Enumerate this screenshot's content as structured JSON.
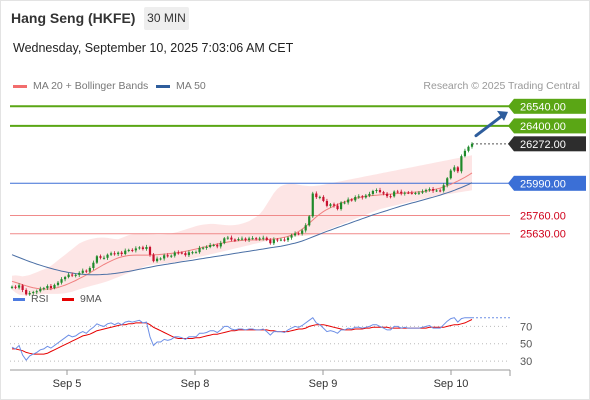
{
  "header": {
    "title": "Hang Seng (HKFE)",
    "timeframe": "30 MIN",
    "datetime": "Wednesday, September 10, 2025 7:03:06 AM CET"
  },
  "legend": {
    "items": [
      {
        "label": "MA 20 + Bollinger Bands",
        "color": "#f26d6d"
      },
      {
        "label": "MA 50",
        "color": "#2e5d9c"
      }
    ],
    "credit": "Research © 2025 Trading Central"
  },
  "rsi_legend": {
    "items": [
      {
        "label": "RSI",
        "color": "#4d7be0"
      },
      {
        "label": "9MA",
        "color": "#e60000"
      }
    ]
  },
  "colors": {
    "up": "#1e8a2a",
    "down": "#c8102e",
    "resistance": "#5aa615",
    "current": "#2d2d2d",
    "pivot": "#3b6fd6",
    "support": "#f08a8a",
    "band_fill": "#fde0e0",
    "arrow": "#2e5d9c"
  },
  "chart_data": [
    {
      "type": "candlestick",
      "x_labels": [
        "Sep 5",
        "Sep 8",
        "Sep 9",
        "Sep 10"
      ],
      "y_range": [
        25185,
        26585
      ],
      "levels": [
        {
          "value": 26540,
          "label": "26540.00",
          "kind": "resistance"
        },
        {
          "value": 26400,
          "label": "26400.00",
          "kind": "resistance"
        },
        {
          "value": 26272,
          "label": "26272.00",
          "kind": "current"
        },
        {
          "value": 25990,
          "label": "25990.00",
          "kind": "pivot"
        },
        {
          "value": 25760,
          "label": "25760.00",
          "kind": "support"
        },
        {
          "value": 25630,
          "label": "25630.00",
          "kind": "support"
        }
      ],
      "close": [
        25251,
        25245,
        25261,
        25228,
        25197,
        25206,
        25213,
        25219,
        25236,
        25241,
        25256,
        25242,
        25264,
        25280,
        25305,
        25320,
        25338,
        25331,
        25336,
        25350,
        25366,
        25359,
        25385,
        25423,
        25469,
        25458,
        25458,
        25480,
        25490,
        25484,
        25495,
        25485,
        25509,
        25514,
        25511,
        25525,
        25532,
        25521,
        25535,
        25480,
        25434,
        25452,
        25453,
        25476,
        25468,
        25473,
        25496,
        25495,
        25491,
        25477,
        25497,
        25498,
        25498,
        25528,
        25530,
        25535,
        25549,
        25549,
        25539,
        25564,
        25597,
        25602,
        25588,
        25586,
        25592,
        25595,
        25586,
        25596,
        25598,
        25592,
        25596,
        25601,
        25586,
        25562,
        25589,
        25585,
        25588,
        25584,
        25602,
        25618,
        25632,
        25630,
        25653,
        25690,
        25754,
        25917,
        25891,
        25893,
        25864,
        25829,
        25840,
        25831,
        25806,
        25853,
        25853,
        25874,
        25868,
        25892,
        25897,
        25889,
        25902,
        25914,
        25935,
        25942,
        25927,
        25916,
        25898,
        25897,
        25931,
        25930,
        25917,
        25923,
        25922,
        25920,
        25921,
        25923,
        25932,
        25943,
        25949,
        25937,
        25939,
        25937,
        25976,
        26026,
        26081,
        26104,
        26076,
        26184,
        26222,
        26251,
        26272
      ],
      "ma20": [
        25290,
        25282,
        25274,
        25266,
        25258,
        25250,
        25244,
        25239,
        25236,
        25234,
        25234,
        25236,
        25240,
        25246,
        25254,
        25263,
        25273,
        25284,
        25296,
        25309,
        25322,
        25336,
        25351,
        25366,
        25381,
        25396,
        25410,
        25423,
        25436,
        25447,
        25457,
        25464,
        25470,
        25474,
        25476,
        25477,
        25477,
        25477,
        25477,
        25478,
        25479,
        25480,
        25482,
        25484,
        25486,
        25489,
        25492,
        25495,
        25499,
        25504,
        25509,
        25515,
        25521,
        25527,
        25533,
        25539,
        25545,
        25551,
        25556,
        25561,
        25566,
        25571,
        25575,
        25578,
        25580,
        25582,
        25584,
        25585,
        25585,
        25586,
        25586,
        25587,
        25588,
        25590,
        25592,
        25595,
        25599,
        25604,
        25611,
        25620,
        25631,
        25645,
        25662,
        25682,
        25704,
        25728,
        25750,
        25770,
        25788,
        25803,
        25816,
        25828,
        25839,
        25849,
        25858,
        25867,
        25875,
        25882,
        25888,
        25893,
        25897,
        25900,
        25903,
        25905,
        25907,
        25909,
        25911,
        25913,
        25915,
        25917,
        25919,
        25921,
        25923,
        25925,
        25927,
        25929,
        25931,
        25934,
        25938,
        25943,
        25949,
        25956,
        25964,
        25973,
        25983,
        25994,
        26006,
        26019,
        26033,
        26048,
        26064
      ],
      "ma50": [
        25480,
        25470,
        25460,
        25450,
        25440,
        25431,
        25422,
        25413,
        25405,
        25397,
        25389,
        25382,
        25375,
        25369,
        25363,
        25358,
        25353,
        25349,
        25345,
        25342,
        25340,
        25338,
        25337,
        25337,
        25337,
        25338,
        25339,
        25341,
        25343,
        25346,
        25349,
        25353,
        25357,
        25361,
        25366,
        25371,
        25376,
        25381,
        25386,
        25391,
        25396,
        25401,
        25405,
        25409,
        25413,
        25417,
        25421,
        25425,
        25429,
        25433,
        25437,
        25441,
        25445,
        25449,
        25453,
        25457,
        25461,
        25465,
        25469,
        25473,
        25477,
        25481,
        25485,
        25489,
        25493,
        25497,
        25501,
        25505,
        25509,
        25513,
        25517,
        25521,
        25525,
        25529,
        25533,
        25537,
        25541,
        25546,
        25551,
        25557,
        25563,
        25570,
        25578,
        25587,
        25597,
        25607,
        25617,
        25627,
        25637,
        25647,
        25656,
        25665,
        25674,
        25683,
        25692,
        25701,
        25710,
        25719,
        25728,
        25737,
        25746,
        25755,
        25764,
        25772,
        25780,
        25788,
        25796,
        25804,
        25812,
        25820,
        25828,
        25835,
        25842,
        25849,
        25856,
        25863,
        25870,
        25877,
        25884,
        25891,
        25898,
        25906,
        25914,
        25922,
        25931,
        25940,
        25950,
        25960,
        25971,
        25982,
        25994
      ],
      "band_upper": [
        25330,
        25332,
        25330,
        25325,
        25330,
        25335,
        25345,
        25355,
        25365,
        25375,
        25385,
        25400,
        25420,
        25440,
        25460,
        25480,
        25500,
        25520,
        25540,
        25560,
        25572,
        25582,
        25590,
        25596,
        25600,
        25602,
        25602,
        25600,
        25596,
        25592,
        25590,
        25600,
        25610,
        25620,
        25625,
        25630,
        25632,
        25630,
        25628,
        25626,
        25624,
        25622,
        25622,
        25624,
        25628,
        25632,
        25638,
        25644,
        25652,
        25660,
        25668,
        25676,
        25684,
        25690,
        25695,
        25698,
        25700,
        25700,
        25698,
        25695,
        25692,
        25690,
        25690,
        25692,
        25696,
        25702,
        25710,
        25720,
        25735,
        25750,
        25770,
        25800,
        25840,
        25880,
        25920,
        25950,
        25970,
        25980,
        25985,
        25988,
        25985,
        25980,
        25975,
        25972,
        25970,
        25970,
        25972,
        25975,
        25980,
        25985,
        25990,
        25995,
        26000,
        26005,
        26010,
        26015,
        26020,
        26025,
        26030,
        26035,
        26040,
        26045,
        26050,
        26055,
        26060,
        26065,
        26070,
        26075,
        26080,
        26085,
        26090,
        26095,
        26100,
        26105,
        26110,
        26115,
        26120,
        26125,
        26130,
        26135,
        26140,
        26145,
        26150,
        26155,
        26160,
        26165,
        26170,
        26175,
        26180,
        26185,
        26190
      ],
      "band_lower": [
        25230,
        25210,
        25195,
        25190,
        25190,
        25192,
        25194,
        25196,
        25198,
        25200,
        25200,
        25200,
        25200,
        25200,
        25202,
        25205,
        25210,
        25216,
        25224,
        25232,
        25240,
        25248,
        25255,
        25262,
        25268,
        25275,
        25282,
        25290,
        25300,
        25310,
        25320,
        25330,
        25340,
        25350,
        25360,
        25370,
        25380,
        25390,
        25400,
        25405,
        25410,
        25412,
        25415,
        25418,
        25420,
        25423,
        25426,
        25430,
        25435,
        25440,
        25446,
        25452,
        25458,
        25464,
        25470,
        25476,
        25482,
        25488,
        25494,
        25500,
        25506,
        25512,
        25518,
        25524,
        25530,
        25536,
        25542,
        25548,
        25554,
        25560,
        25566,
        25572,
        25578,
        25584,
        25590,
        25594,
        25598,
        25602,
        25606,
        25608,
        25610,
        25612,
        25614,
        25616,
        25618,
        25622,
        25628,
        25636,
        25646,
        25656,
        25666,
        25676,
        25686,
        25696,
        25706,
        25716,
        25726,
        25736,
        25746,
        25756,
        25766,
        25776,
        25786,
        25796,
        25806,
        25812,
        25818,
        25824,
        25830,
        25836,
        25842,
        25848,
        25854,
        25860,
        25866,
        25872,
        25878,
        25884,
        25890,
        25896,
        25900,
        25904,
        25908,
        25912,
        25916,
        25920,
        25924,
        25928,
        25932,
        25936,
        25940
      ],
      "forecast_arrow": {
        "from": 26330,
        "to": 26500
      }
    },
    {
      "type": "line",
      "title": "RSI",
      "y_ticks": [
        70,
        50,
        30
      ],
      "y_range": [
        22,
        82
      ],
      "rsi": [
        46,
        44,
        48,
        37,
        31,
        36,
        38,
        40,
        43,
        44,
        47,
        45,
        48,
        51,
        54,
        57,
        60,
        58,
        59,
        62,
        64,
        62,
        66,
        69,
        73,
        71,
        70,
        73,
        74,
        72,
        74,
        72,
        75,
        76,
        75,
        76,
        77,
        74,
        75,
        58,
        48,
        52,
        52,
        55,
        54,
        55,
        58,
        58,
        57,
        55,
        58,
        58,
        58,
        62,
        62,
        63,
        65,
        65,
        63,
        66,
        70,
        70,
        67,
        66,
        67,
        67,
        66,
        67,
        67,
        66,
        66,
        67,
        64,
        60,
        64,
        64,
        64,
        63,
        66,
        68,
        70,
        69,
        71,
        74,
        77,
        80,
        74,
        72,
        68,
        64,
        65,
        64,
        62,
        66,
        66,
        68,
        67,
        69,
        69,
        68,
        69,
        70,
        72,
        72,
        70,
        68,
        66,
        66,
        70,
        70,
        68,
        69,
        68,
        68,
        68,
        68,
        69,
        70,
        71,
        68,
        68,
        68,
        72,
        76,
        79,
        80,
        75,
        79,
        80,
        80,
        80
      ],
      "rsi_ma": [
        44,
        44,
        43,
        42,
        40,
        39,
        38,
        38,
        38,
        38,
        39,
        41,
        43,
        45,
        47,
        49,
        51,
        53,
        55,
        57,
        59,
        60,
        61,
        63,
        65,
        66,
        67,
        68,
        69,
        70,
        71,
        72,
        72,
        73,
        73,
        74,
        74,
        74,
        74,
        72,
        69,
        67,
        65,
        63,
        61,
        59,
        57,
        56,
        56,
        56,
        56,
        56,
        57,
        57,
        58,
        59,
        60,
        61,
        61,
        62,
        63,
        64,
        65,
        65,
        66,
        66,
        66,
        66,
        66,
        66,
        66,
        66,
        66,
        65,
        65,
        64,
        64,
        64,
        64,
        65,
        66,
        67,
        67,
        68,
        70,
        71,
        72,
        72,
        72,
        71,
        70,
        69,
        68,
        67,
        66,
        66,
        66,
        67,
        67,
        67,
        68,
        68,
        69,
        69,
        69,
        69,
        69,
        68,
        68,
        68,
        68,
        68,
        68,
        68,
        68,
        68,
        68,
        68,
        69,
        69,
        69,
        69,
        69,
        70,
        71,
        72,
        72,
        73,
        74,
        76,
        78
      ]
    }
  ]
}
